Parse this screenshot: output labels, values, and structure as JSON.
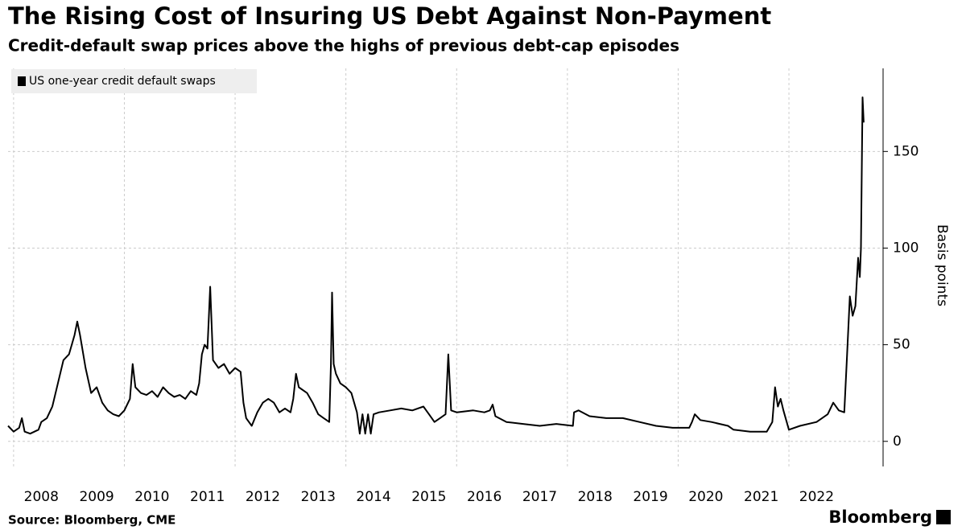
{
  "chart_data": {
    "type": "line",
    "title": "The Rising Cost of Insuring US Debt Against Non-Payment",
    "subtitle": "Credit-default swap prices above the highs of previous debt-cap episodes",
    "y_label": "Basis points",
    "source": "Source: Bloomberg, CME",
    "brand": "Bloomberg",
    "legend": "top-left",
    "grid": true,
    "xlim": [
      2007.9,
      2023.7
    ],
    "xticks": [
      {
        "value": 2008.5,
        "label": "2008"
      },
      {
        "value": 2009.5,
        "label": "2009"
      },
      {
        "value": 2010.5,
        "label": "2010"
      },
      {
        "value": 2011.5,
        "label": "2011"
      },
      {
        "value": 2012.5,
        "label": "2012"
      },
      {
        "value": 2013.5,
        "label": "2013"
      },
      {
        "value": 2014.5,
        "label": "2014"
      },
      {
        "value": 2015.5,
        "label": "2015"
      },
      {
        "value": 2016.5,
        "label": "2016"
      },
      {
        "value": 2017.5,
        "label": "2017"
      },
      {
        "value": 2018.5,
        "label": "2018"
      },
      {
        "value": 2019.5,
        "label": "2019"
      },
      {
        "value": 2020.5,
        "label": "2020"
      },
      {
        "value": 2021.5,
        "label": "2021"
      },
      {
        "value": 2022.5,
        "label": "2022"
      }
    ],
    "xgrid": [
      2008,
      2010,
      2012,
      2014,
      2016,
      2018,
      2020,
      2022
    ],
    "ylim": [
      -13,
      193
    ],
    "yticks": [
      0,
      50,
      100,
      150
    ],
    "x": [
      2007.9,
      2008.0,
      2008.1,
      2008.15,
      2008.2,
      2008.3,
      2008.45,
      2008.5,
      2008.6,
      2008.7,
      2008.8,
      2008.9,
      2009.0,
      2009.1,
      2009.15,
      2009.2,
      2009.3,
      2009.4,
      2009.5,
      2009.6,
      2009.7,
      2009.8,
      2009.9,
      2010.0,
      2010.1,
      2010.15,
      2010.2,
      2010.3,
      2010.4,
      2010.5,
      2010.6,
      2010.7,
      2010.8,
      2010.9,
      2011.0,
      2011.1,
      2011.2,
      2011.3,
      2011.35,
      2011.4,
      2011.45,
      2011.5,
      2011.55,
      2011.6,
      2011.7,
      2011.8,
      2011.9,
      2012.0,
      2012.1,
      2012.15,
      2012.2,
      2012.3,
      2012.4,
      2012.5,
      2012.6,
      2012.7,
      2012.8,
      2012.9,
      2013.0,
      2013.05,
      2013.1,
      2013.15,
      2013.3,
      2013.4,
      2013.5,
      2013.6,
      2013.65,
      2013.7,
      2013.73,
      2013.75,
      2013.78,
      2013.82,
      2013.9,
      2014.0,
      2014.1,
      2014.2,
      2014.25,
      2014.3,
      2014.35,
      2014.4,
      2014.45,
      2014.5,
      2014.6,
      2014.8,
      2015.0,
      2015.2,
      2015.4,
      2015.5,
      2015.6,
      2015.7,
      2015.8,
      2015.85,
      2015.9,
      2016.0,
      2016.3,
      2016.5,
      2016.6,
      2016.65,
      2016.7,
      2016.9,
      2017.2,
      2017.5,
      2017.8,
      2018.1,
      2018.12,
      2018.2,
      2018.4,
      2018.7,
      2019.0,
      2019.3,
      2019.6,
      2019.9,
      2020.2,
      2020.25,
      2020.3,
      2020.4,
      2020.6,
      2020.9,
      2021.0,
      2021.3,
      2021.6,
      2021.7,
      2021.75,
      2021.8,
      2021.85,
      2021.9,
      2022.0,
      2022.2,
      2022.5,
      2022.7,
      2022.8,
      2022.9,
      2023.0,
      2023.05,
      2023.1,
      2023.15,
      2023.2,
      2023.25,
      2023.28,
      2023.3,
      2023.33,
      2023.35
    ],
    "series": [
      {
        "name": "US one-year credit default swaps",
        "color": "#000000",
        "values": [
          8,
          5,
          7,
          12,
          5,
          4,
          6,
          10,
          12,
          18,
          30,
          42,
          45,
          55,
          62,
          55,
          38,
          25,
          28,
          20,
          16,
          14,
          13,
          16,
          22,
          40,
          28,
          25,
          24,
          26,
          23,
          28,
          25,
          23,
          24,
          22,
          26,
          24,
          30,
          45,
          50,
          48,
          80,
          42,
          38,
          40,
          35,
          38,
          36,
          20,
          12,
          8,
          15,
          20,
          22,
          20,
          15,
          17,
          15,
          22,
          35,
          28,
          25,
          20,
          14,
          12,
          11,
          10,
          40,
          77,
          40,
          35,
          30,
          28,
          25,
          15,
          4,
          14,
          4,
          14,
          4,
          14,
          15,
          16,
          17,
          16,
          18,
          14,
          10,
          12,
          14,
          45,
          16,
          15,
          16,
          15,
          16,
          19,
          13,
          10,
          9,
          8,
          9,
          8,
          15,
          16,
          13,
          12,
          12,
          10,
          8,
          7,
          7,
          10,
          14,
          11,
          10,
          8,
          6,
          5,
          5,
          10,
          28,
          18,
          22,
          16,
          6,
          8,
          10,
          14,
          20,
          16,
          15,
          45,
          75,
          65,
          70,
          95,
          85,
          100,
          178,
          165
        ]
      }
    ]
  }
}
